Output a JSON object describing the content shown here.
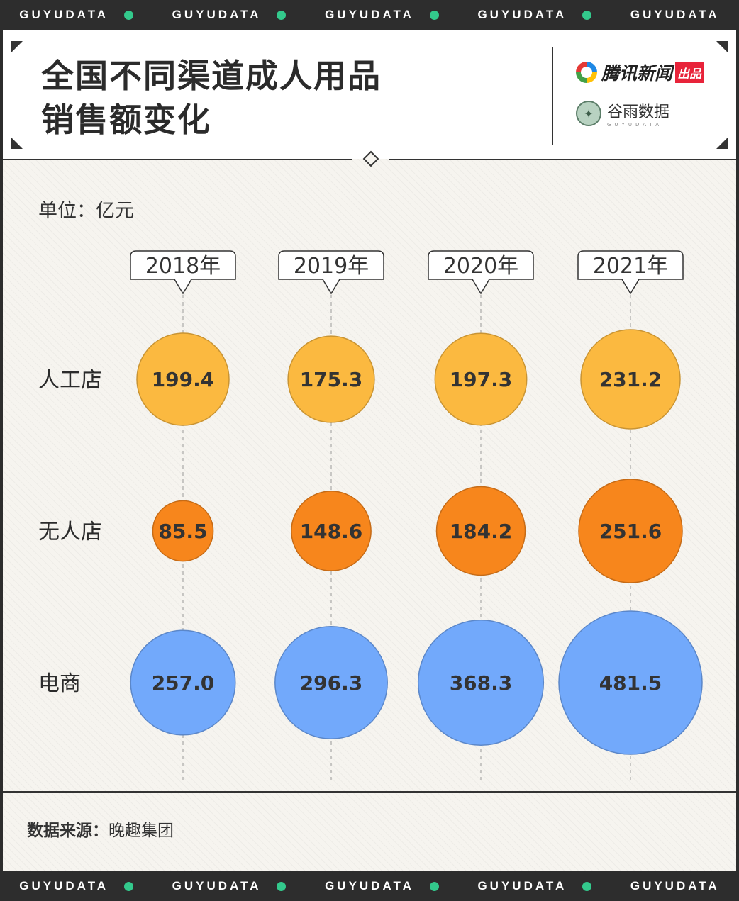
{
  "brand_band": {
    "text": "GUYUDATA",
    "dot_color": "#33c98c"
  },
  "header": {
    "title_line1": "全国不同渠道成人用品",
    "title_line2": "销售额变化",
    "brand1_name": "腾讯新闻",
    "brand1_tag": "出品",
    "brand2_name": "谷雨数据",
    "brand2_sub": "GUYUDATA"
  },
  "unit_label": "单位：亿元",
  "chart_data": {
    "type": "bubble",
    "title": "全国不同渠道成人用品销售额变化",
    "unit": "亿元",
    "categories": [
      "2018年",
      "2019年",
      "2020年",
      "2021年"
    ],
    "series": [
      {
        "name": "人工店",
        "color": "#fbb940",
        "values": [
          199.4,
          175.3,
          197.3,
          231.2
        ]
      },
      {
        "name": "无人店",
        "color": "#f7861c",
        "values": [
          85.5,
          148.6,
          184.2,
          251.6
        ]
      },
      {
        "name": "电商",
        "color": "#72a9fb",
        "values": [
          257.0,
          296.3,
          368.3,
          481.5
        ]
      }
    ]
  },
  "footer": {
    "source_key": "数据来源：",
    "source_value": "晚趣集团"
  }
}
